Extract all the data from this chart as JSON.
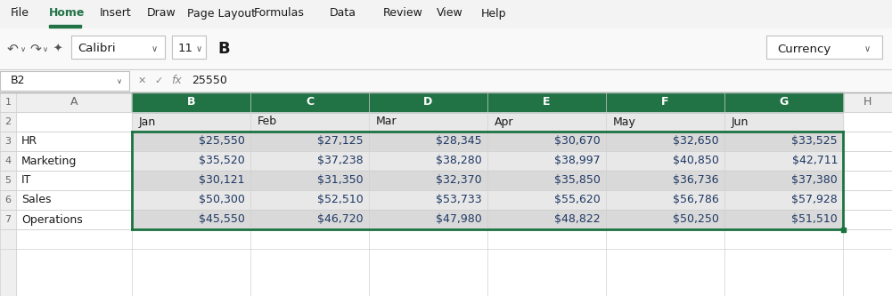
{
  "title_bar": [
    "File",
    "Home",
    "Insert",
    "Draw",
    "Page Layout",
    "Formulas",
    "Data",
    "Review",
    "View",
    "Help"
  ],
  "formula_bar_ref": "B2",
  "formula_bar_value": "25550",
  "col_headers": [
    "A",
    "B",
    "C",
    "D",
    "E",
    "F",
    "G",
    "H"
  ],
  "row_headers": [
    "1",
    "2",
    "3",
    "4",
    "5",
    "6",
    "7"
  ],
  "months": [
    "Jan",
    "Feb",
    "Mar",
    "Apr",
    "May",
    "Jun"
  ],
  "departments": [
    "HR",
    "Marketing",
    "IT",
    "Sales",
    "Operations"
  ],
  "data": [
    [
      25550,
      27125,
      28345,
      30670,
      32650,
      33525
    ],
    [
      35520,
      37238,
      38280,
      38997,
      40850,
      42711
    ],
    [
      30121,
      31350,
      32370,
      35850,
      36736,
      37380
    ],
    [
      50300,
      52510,
      53733,
      55620,
      56786,
      57928
    ],
    [
      45550,
      46720,
      47980,
      48822,
      50250,
      51510
    ]
  ],
  "bg_color": "#ffffff",
  "grid_line_color": "#d0d0d0",
  "selection_border_color": "#1a7340",
  "value_text_color": "#1f3864",
  "figsize": [
    10.01,
    3.33
  ],
  "dpi": 100,
  "menu_x_positions": [
    12,
    55,
    112,
    165,
    210,
    285,
    370,
    430,
    490,
    540
  ]
}
